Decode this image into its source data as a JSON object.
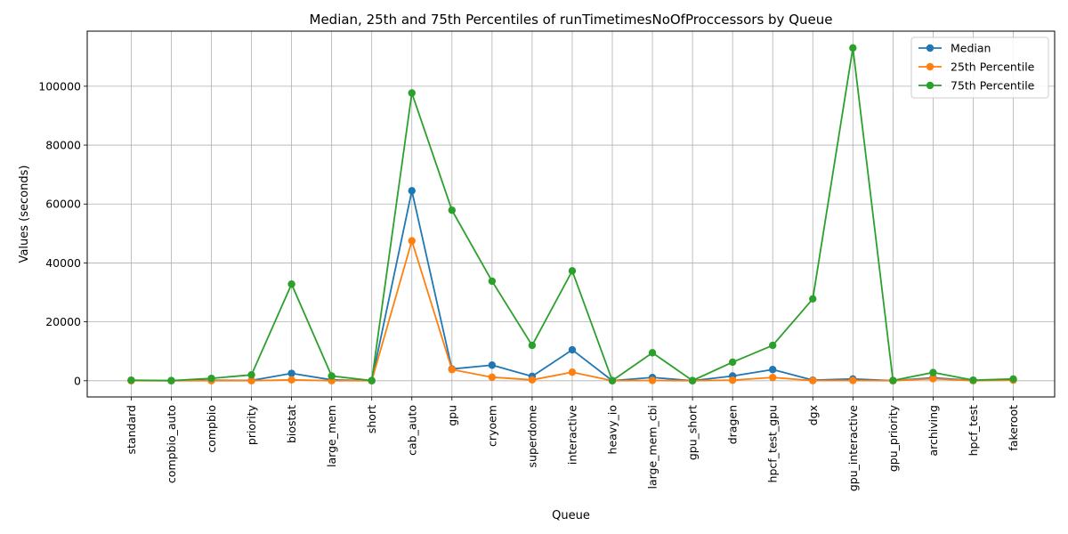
{
  "chart_data": {
    "type": "line",
    "title": "Median, 25th and 75th Percentiles of runTimetimesNoOfProccessors by Queue",
    "xlabel": "Queue",
    "ylabel": "Values (seconds)",
    "ylim": [
      -5500,
      118700
    ],
    "yticks": [
      0,
      20000,
      40000,
      60000,
      80000,
      100000
    ],
    "grid": true,
    "legend_position": "top-right",
    "categories": [
      "standard",
      "compbio_auto",
      "compbio",
      "priority",
      "biostat",
      "large_mem",
      "short",
      "cab_auto",
      "gpu",
      "cryoem",
      "superdome",
      "interactive",
      "heavy_io",
      "large_mem_cbi",
      "gpu_short",
      "dragen",
      "hpcf_test_gpu",
      "dgx",
      "gpu_interactive",
      "gpu_priority",
      "archiving",
      "hpcf_test",
      "fakeroot"
    ],
    "series": [
      {
        "name": "Median",
        "color": "#1f77b4",
        "values": [
          50,
          20,
          150,
          100,
          2500,
          300,
          10,
          64500,
          4000,
          5300,
          1500,
          10500,
          10,
          1100,
          10,
          1600,
          3800,
          200,
          600,
          20,
          1000,
          100,
          400
        ]
      },
      {
        "name": "25th Percentile",
        "color": "#ff7f0e",
        "values": [
          10,
          10,
          20,
          20,
          300,
          20,
          5,
          47500,
          3800,
          1200,
          300,
          2900,
          5,
          100,
          5,
          200,
          1100,
          50,
          100,
          10,
          700,
          20,
          200
        ]
      },
      {
        "name": "75th Percentile",
        "color": "#2ca02c",
        "values": [
          200,
          50,
          800,
          2000,
          32800,
          1600,
          50,
          97700,
          57900,
          33800,
          12000,
          37300,
          50,
          9500,
          50,
          6300,
          12000,
          27800,
          113000,
          100,
          2800,
          200,
          600
        ]
      }
    ]
  }
}
